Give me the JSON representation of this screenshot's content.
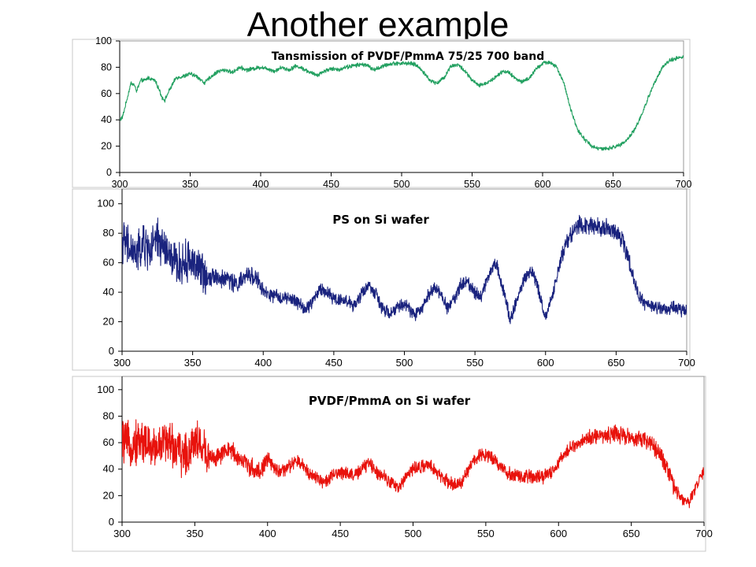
{
  "slide": {
    "title": "Another example"
  },
  "chart_data": [
    {
      "type": "line",
      "title": "Tansmission of PVDF/PmmA 75/25 700 band",
      "xlim": [
        300,
        700
      ],
      "ylim": [
        0,
        100
      ],
      "xticks": [
        300,
        350,
        400,
        450,
        500,
        550,
        600,
        650,
        700
      ],
      "yticks": [
        0,
        20,
        40,
        60,
        80,
        100
      ],
      "grid": false,
      "legend": "none",
      "color": "#22a060",
      "noise": 1.2,
      "series": [
        {
          "x": [
            300,
            302,
            305,
            308,
            310,
            312,
            315,
            318,
            320,
            325,
            328,
            330,
            332,
            335,
            340,
            345,
            350,
            355,
            360,
            365,
            370,
            375,
            380,
            385,
            390,
            395,
            400,
            405,
            410,
            415,
            420,
            425,
            430,
            435,
            440,
            445,
            450,
            455,
            460,
            465,
            470,
            475,
            480,
            485,
            490,
            495,
            500,
            505,
            510,
            515,
            520,
            525,
            530,
            535,
            540,
            545,
            550,
            555,
            560,
            565,
            570,
            575,
            580,
            585,
            590,
            595,
            600,
            605,
            610,
            615,
            620,
            625,
            630,
            635,
            640,
            645,
            650,
            655,
            660,
            665,
            670,
            675,
            680,
            685,
            690,
            695,
            700
          ],
          "y": [
            40,
            42,
            55,
            68,
            67,
            62,
            70,
            70,
            72,
            70,
            63,
            57,
            55,
            62,
            72,
            73,
            75,
            73,
            68,
            73,
            77,
            78,
            76,
            80,
            78,
            79,
            80,
            79,
            77,
            80,
            78,
            81,
            79,
            76,
            74,
            77,
            79,
            78,
            80,
            81,
            82,
            82,
            78,
            80,
            82,
            83,
            83,
            83,
            82,
            77,
            70,
            68,
            72,
            81,
            82,
            77,
            70,
            66,
            68,
            71,
            76,
            77,
            72,
            69,
            71,
            78,
            83,
            84,
            80,
            68,
            48,
            32,
            25,
            20,
            18,
            18,
            19,
            21,
            25,
            32,
            43,
            57,
            70,
            80,
            85,
            87,
            88
          ]
        }
      ]
    },
    {
      "type": "line",
      "title": "PS on Si wafer",
      "xlim": [
        300,
        700
      ],
      "ylim": [
        0,
        110
      ],
      "xticks": [
        300,
        350,
        400,
        450,
        500,
        550,
        600,
        650,
        700
      ],
      "yticks": [
        0,
        20,
        40,
        60,
        80,
        100
      ],
      "grid": false,
      "legend": "none",
      "color": "#1a237e",
      "noise": 3.5,
      "series": [
        {
          "x": [
            300,
            305,
            310,
            315,
            320,
            325,
            330,
            335,
            340,
            345,
            350,
            355,
            360,
            365,
            370,
            375,
            380,
            385,
            390,
            395,
            400,
            405,
            410,
            415,
            420,
            425,
            430,
            435,
            440,
            445,
            450,
            455,
            460,
            465,
            470,
            475,
            480,
            485,
            490,
            495,
            500,
            505,
            510,
            515,
            520,
            525,
            530,
            535,
            540,
            545,
            550,
            555,
            560,
            565,
            570,
            575,
            580,
            585,
            590,
            595,
            600,
            605,
            610,
            615,
            620,
            625,
            630,
            635,
            640,
            645,
            650,
            655,
            660,
            665,
            670,
            675,
            680,
            685,
            690,
            695,
            700
          ],
          "y": [
            75,
            70,
            65,
            72,
            68,
            75,
            70,
            62,
            58,
            60,
            62,
            55,
            50,
            52,
            48,
            50,
            45,
            48,
            52,
            50,
            40,
            38,
            37,
            36,
            35,
            33,
            28,
            34,
            42,
            40,
            36,
            35,
            34,
            30,
            40,
            45,
            38,
            28,
            25,
            30,
            32,
            27,
            25,
            35,
            43,
            40,
            30,
            35,
            45,
            47,
            40,
            38,
            53,
            60,
            42,
            22,
            35,
            50,
            55,
            42,
            22,
            38,
            60,
            75,
            82,
            87,
            86,
            85,
            84,
            83,
            80,
            75,
            58,
            40,
            32,
            30,
            30,
            28,
            30,
            28,
            27
          ]
        }
      ]
    },
    {
      "type": "line",
      "title": "PVDF/PmmA on Si wafer",
      "xlim": [
        300,
        700
      ],
      "ylim": [
        0,
        110
      ],
      "xticks": [
        300,
        350,
        400,
        450,
        500,
        550,
        600,
        650,
        700
      ],
      "yticks": [
        0,
        20,
        40,
        60,
        80,
        100
      ],
      "grid": false,
      "legend": "none",
      "color": "#e8120c",
      "noise": 4,
      "series": [
        {
          "x": [
            300,
            305,
            310,
            315,
            320,
            325,
            330,
            335,
            340,
            345,
            350,
            355,
            360,
            365,
            370,
            375,
            380,
            385,
            390,
            395,
            400,
            405,
            410,
            415,
            420,
            425,
            430,
            435,
            440,
            445,
            450,
            455,
            460,
            465,
            470,
            475,
            480,
            485,
            490,
            495,
            500,
            505,
            510,
            515,
            520,
            525,
            530,
            535,
            540,
            545,
            550,
            555,
            560,
            565,
            570,
            575,
            580,
            585,
            590,
            595,
            600,
            605,
            610,
            615,
            620,
            625,
            630,
            635,
            640,
            645,
            650,
            655,
            660,
            665,
            670,
            675,
            680,
            685,
            690,
            695,
            700
          ],
          "y": [
            62,
            58,
            60,
            62,
            55,
            58,
            62,
            58,
            52,
            50,
            65,
            55,
            50,
            48,
            52,
            55,
            48,
            45,
            40,
            38,
            48,
            40,
            38,
            42,
            46,
            42,
            36,
            33,
            30,
            35,
            38,
            37,
            35,
            40,
            45,
            38,
            35,
            30,
            25,
            35,
            40,
            42,
            42,
            40,
            33,
            30,
            27,
            33,
            43,
            50,
            52,
            48,
            42,
            37,
            35,
            34,
            34,
            35,
            34,
            38,
            45,
            52,
            58,
            60,
            63,
            65,
            65,
            66,
            67,
            65,
            64,
            63,
            62,
            58,
            50,
            40,
            25,
            18,
            16,
            28,
            40
          ]
        }
      ]
    }
  ]
}
